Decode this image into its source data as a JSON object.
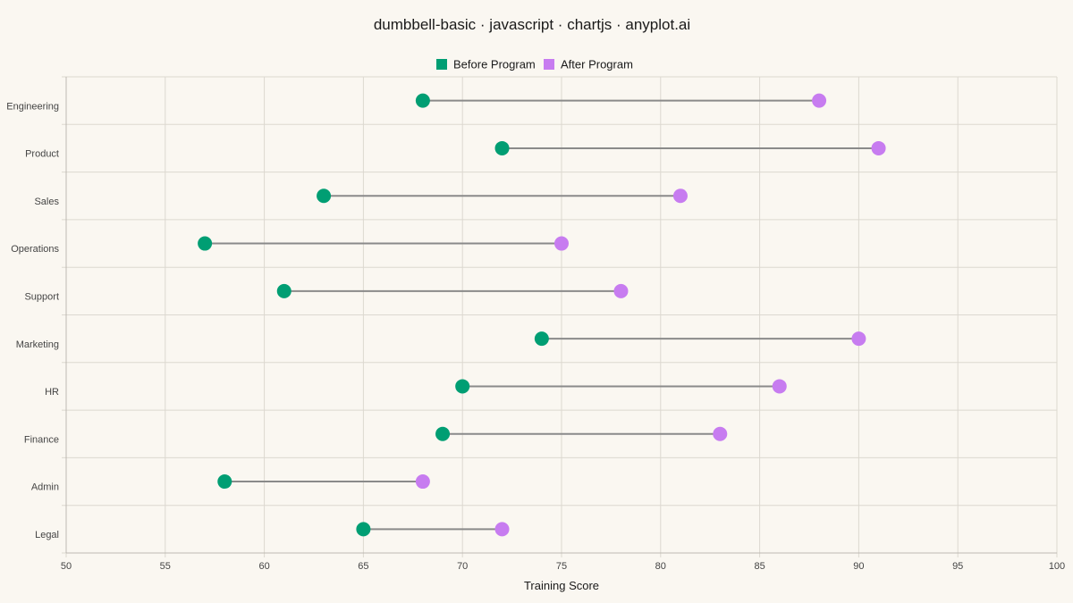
{
  "chart_data": {
    "type": "dumbbell",
    "title": "dumbbell-basic · javascript · chartjs · anyplot.ai",
    "xlabel": "Training Score",
    "ylabel": "",
    "xlim": [
      50,
      100
    ],
    "x_ticks": [
      "50",
      "55",
      "60",
      "65",
      "70",
      "75",
      "80",
      "85",
      "90",
      "95",
      "100"
    ],
    "categories": [
      "Engineering",
      "Product",
      "Sales",
      "Operations",
      "Support",
      "Marketing",
      "HR",
      "Finance",
      "Admin",
      "Legal"
    ],
    "series": [
      {
        "name": "Before Program",
        "color": "#009E73",
        "values": [
          68,
          72,
          63,
          57,
          61,
          74,
          70,
          69,
          58,
          65
        ]
      },
      {
        "name": "After Program",
        "color": "#C77CF0",
        "values": [
          88,
          91,
          81,
          75,
          78,
          90,
          86,
          83,
          68,
          72
        ]
      }
    ],
    "grid": true,
    "legend_position": "top-center"
  }
}
